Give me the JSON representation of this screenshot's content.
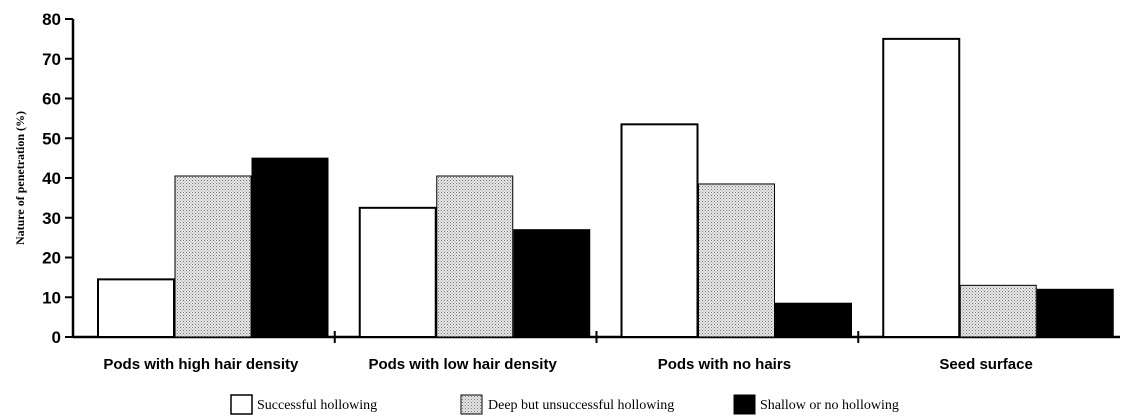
{
  "chart_data": {
    "type": "bar",
    "ylabel": "Nature of penetration (%)",
    "ylim": [
      0,
      80
    ],
    "yticks": [
      0,
      10,
      20,
      30,
      40,
      50,
      60,
      70,
      80
    ],
    "categories": [
      "Pods with high hair density",
      "Pods with low hair density",
      "Pods with no hairs",
      "Seed surface"
    ],
    "series": [
      {
        "name": "Successful hollowing",
        "values": [
          14.5,
          32.5,
          53.5,
          75
        ],
        "fill": "#ffffff"
      },
      {
        "name": "Deep but unsuccessful hollowing",
        "values": [
          40.5,
          40.5,
          38.5,
          13
        ],
        "fill": "dotted-gray"
      },
      {
        "name": "Shallow or no hollowing",
        "values": [
          45,
          27,
          8.5,
          12
        ],
        "fill": "#000000"
      }
    ],
    "legend_position": "bottom-center",
    "grid": false
  }
}
